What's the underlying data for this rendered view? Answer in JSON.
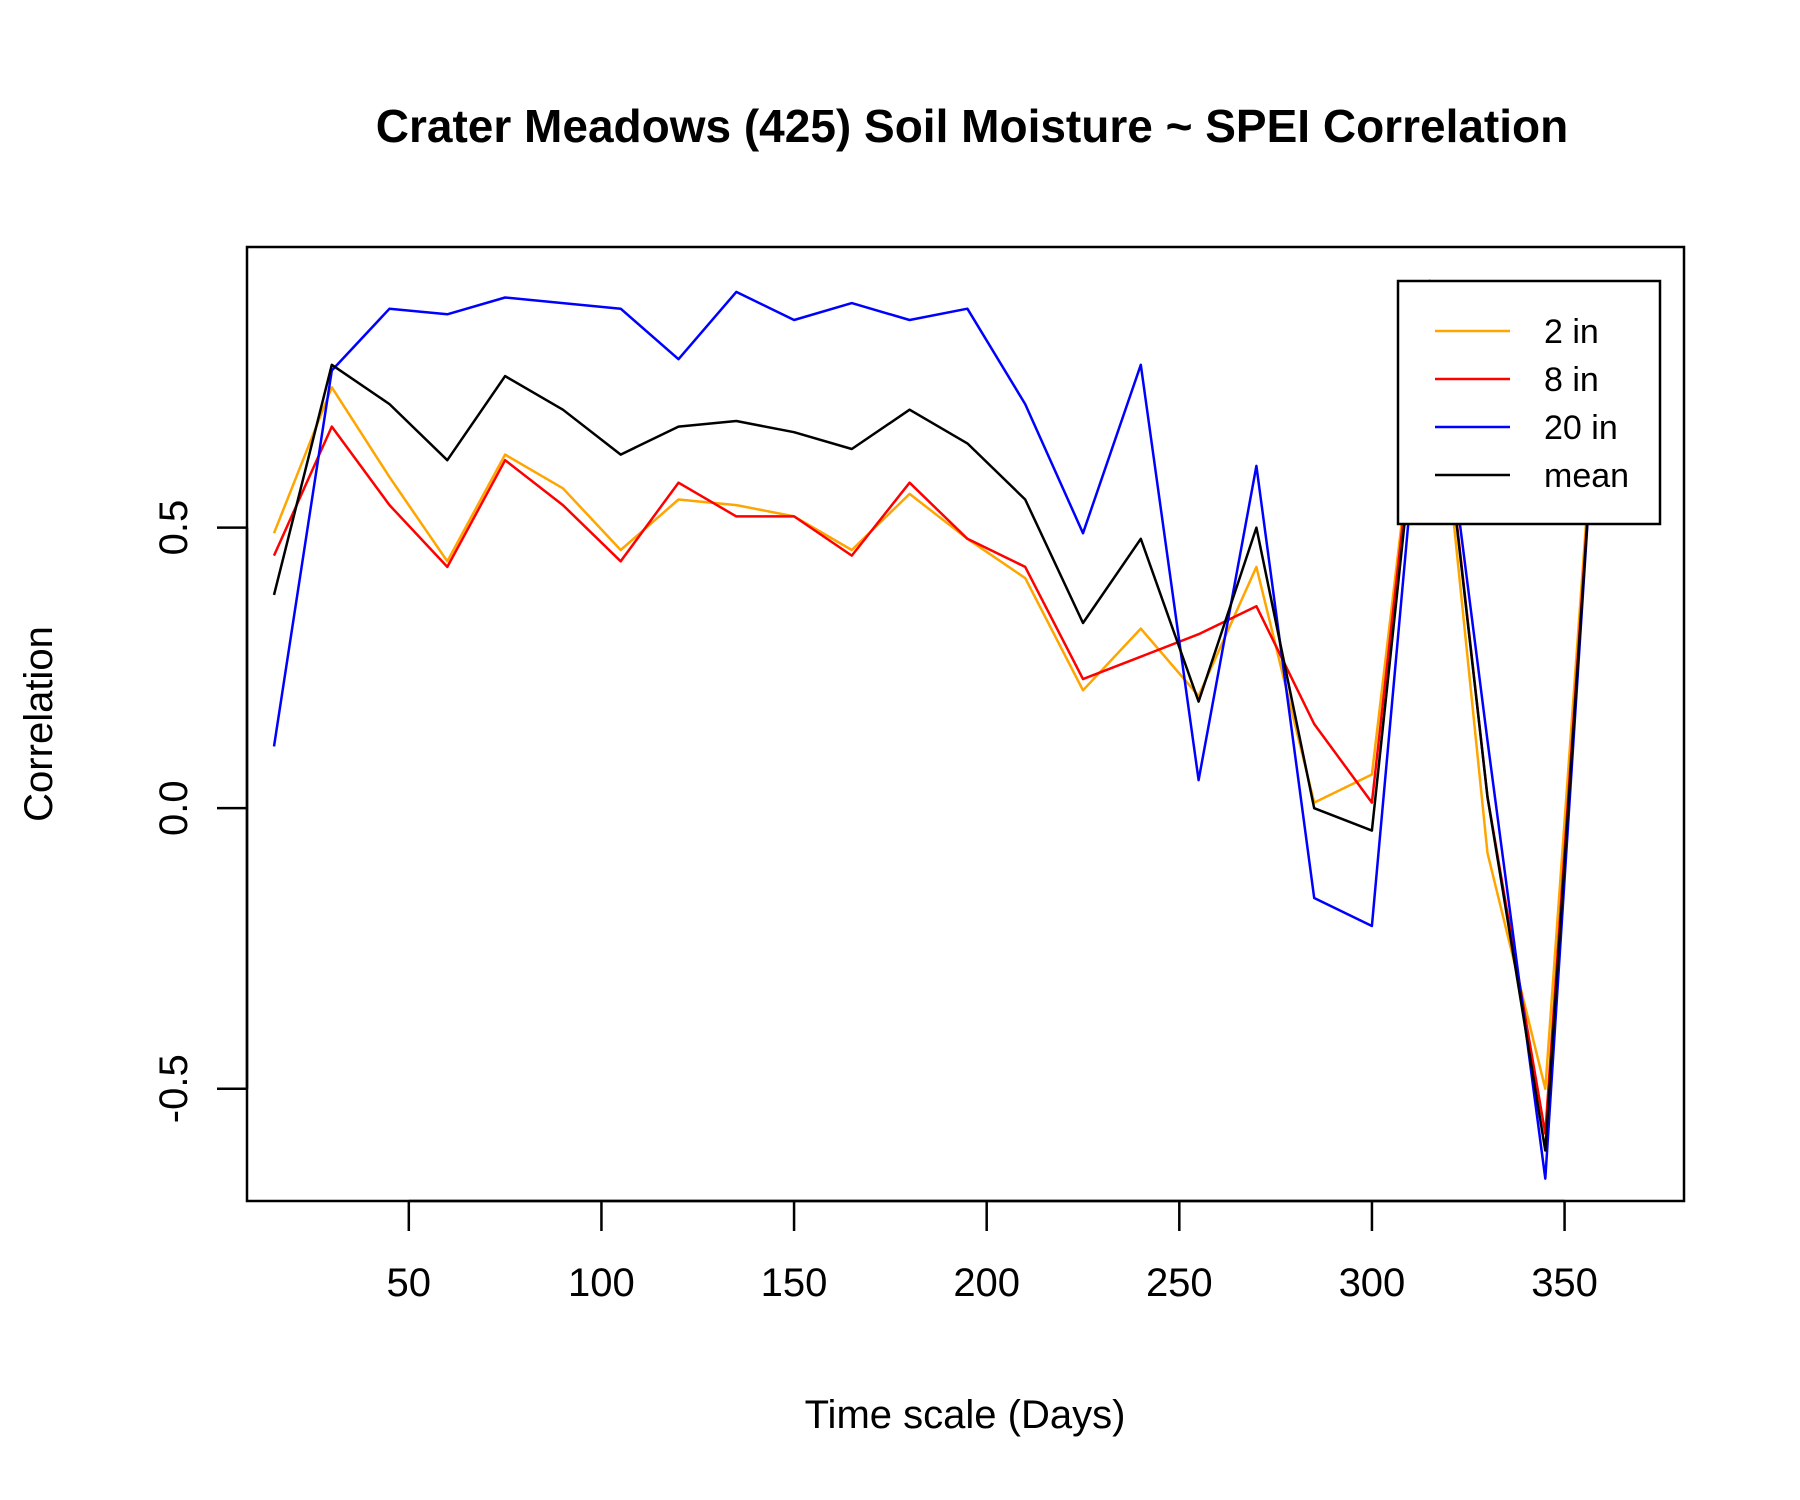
{
  "chart_data": {
    "type": "line",
    "title": "Crater Meadows (425) Soil Moisture ~ SPEI Correlation",
    "xlabel": "Time scale (Days)",
    "ylabel": "Correlation",
    "xlim": [
      8,
      381
    ],
    "ylim": [
      -0.7,
      1.0
    ],
    "x_ticks": [
      50,
      100,
      150,
      200,
      250,
      300,
      350
    ],
    "x_tick_labels": [
      "50",
      "100",
      "150",
      "200",
      "250",
      "300",
      "350"
    ],
    "y_ticks": [
      -0.5,
      0.0,
      0.5
    ],
    "y_tick_labels": [
      "-0.5",
      "0.0",
      "0.5"
    ],
    "grid": false,
    "legend_position": "top-right",
    "x": [
      15,
      30,
      45,
      60,
      75,
      90,
      105,
      120,
      135,
      150,
      165,
      180,
      195,
      210,
      225,
      240,
      255,
      270,
      285,
      300,
      315,
      330,
      345,
      360
    ],
    "series": [
      {
        "name": "2 in",
        "color": "#FFA500",
        "values": [
          0.49,
          0.75,
          0.59,
          0.44,
          0.63,
          0.57,
          0.46,
          0.55,
          0.54,
          0.52,
          0.46,
          0.56,
          0.48,
          0.41,
          0.21,
          0.32,
          0.2,
          0.43,
          0.01,
          0.06,
          0.93,
          -0.08,
          -0.5,
          0.93
        ]
      },
      {
        "name": "8 in",
        "color": "#FF0000",
        "values": [
          0.45,
          0.68,
          0.54,
          0.43,
          0.62,
          0.54,
          0.44,
          0.58,
          0.52,
          0.52,
          0.45,
          0.58,
          0.48,
          0.43,
          0.23,
          0.27,
          0.31,
          0.36,
          0.15,
          0.01,
          0.94,
          0.02,
          -0.58,
          0.93
        ]
      },
      {
        "name": "20 in",
        "color": "#0000FF",
        "values": [
          0.11,
          0.78,
          0.89,
          0.88,
          0.91,
          0.9,
          0.89,
          0.8,
          0.92,
          0.87,
          0.9,
          0.87,
          0.89,
          0.72,
          0.49,
          0.79,
          0.05,
          0.61,
          -0.16,
          -0.21,
          0.93,
          0.12,
          -0.66,
          0.94
        ]
      },
      {
        "name": "mean",
        "color": "#000000",
        "values": [
          0.38,
          0.79,
          0.72,
          0.62,
          0.77,
          0.71,
          0.63,
          0.68,
          0.69,
          0.67,
          0.64,
          0.71,
          0.65,
          0.55,
          0.33,
          0.48,
          0.19,
          0.5,
          0.0,
          -0.04,
          0.93,
          0.02,
          -0.61,
          0.93
        ]
      }
    ]
  }
}
